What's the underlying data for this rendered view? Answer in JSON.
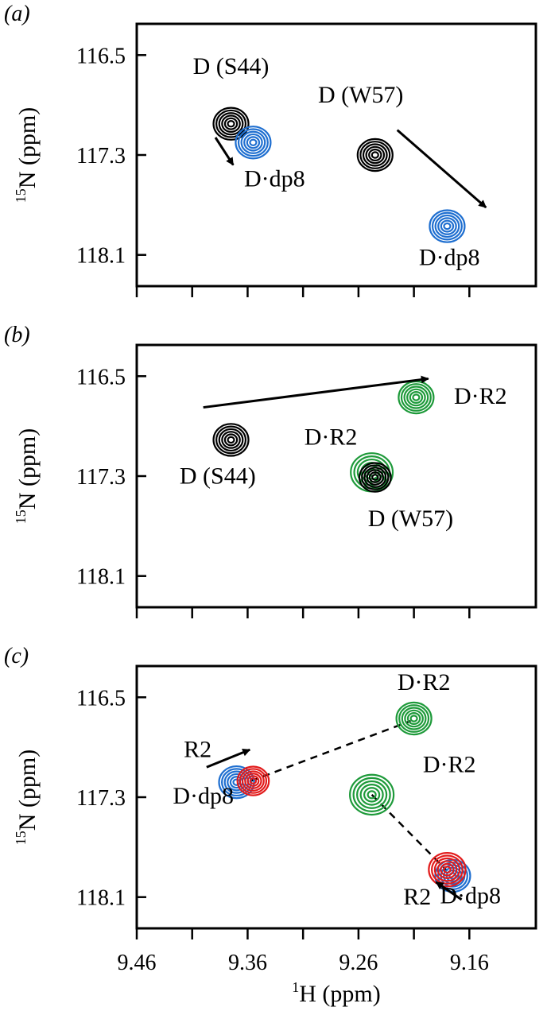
{
  "chart_data": [
    {
      "type": "contour",
      "panel_label": "(a)",
      "ylabel": "15N (ppm)",
      "ylabel_sup": "15",
      "ylabel_rest": "N (ppm)",
      "xlabel": "",
      "xticks": [
        "",
        "",
        "",
        "",
        "",
        "",
        ""
      ],
      "xlim": [
        9.46,
        9.1
      ],
      "ylim": [
        116.25,
        118.35
      ],
      "yticks": [
        "116.5",
        "117.3",
        "118.1"
      ],
      "peaks": [
        {
          "label": "D (S44)",
          "x": 9.375,
          "y": 117.05,
          "color": "#000000",
          "spread": 1.0
        },
        {
          "label": "D·dp8",
          "x": 9.355,
          "y": 117.2,
          "color": "#1f6fd0",
          "spread": 1.0
        },
        {
          "label": "D (W57)",
          "x": 9.245,
          "y": 117.3,
          "color": "#000000",
          "spread": 1.0
        },
        {
          "label": "D·dp8",
          "x": 9.18,
          "y": 117.87,
          "color": "#1f6fd0",
          "spread": 1.0
        }
      ],
      "arrows": [
        {
          "from": [
            9.389,
            117.16
          ],
          "to": [
            9.373,
            117.38
          ]
        },
        {
          "from": [
            9.225,
            117.1
          ],
          "to": [
            9.145,
            117.72
          ]
        }
      ],
      "dashed": [],
      "labels": [
        {
          "text": "D (S44)",
          "x": 9.375,
          "y": 116.65,
          "anchor": "middle"
        },
        {
          "text": "D·dp8",
          "x": 9.3357,
          "y": 117.55,
          "anchor": "middle"
        },
        {
          "text": "D (W57)",
          "x": 9.258,
          "y": 116.88,
          "anchor": "middle"
        },
        {
          "text": "D·dp8",
          "x": 9.178,
          "y": 118.18,
          "anchor": "middle"
        }
      ]
    },
    {
      "type": "contour",
      "panel_label": "(b)",
      "ylabel": "15N (ppm)",
      "ylabel_sup": "15",
      "ylabel_rest": "N (ppm)",
      "xlabel": "",
      "xticks": [
        "",
        "",
        "",
        "",
        "",
        "",
        ""
      ],
      "xlim": [
        9.46,
        9.1
      ],
      "ylim": [
        116.25,
        118.35
      ],
      "yticks": [
        "116.5",
        "117.3",
        "118.1"
      ],
      "peaks": [
        {
          "label": "D·R2",
          "x": 9.208,
          "y": 116.67,
          "color": "#1e9a3a",
          "spread": 1.0
        },
        {
          "label": "D (S44)",
          "x": 9.375,
          "y": 117.01,
          "color": "#000000",
          "spread": 1.0
        },
        {
          "label": "D·R2",
          "x": 9.248,
          "y": 117.27,
          "color": "#1e9a3a",
          "spread": 1.2
        },
        {
          "label": "D (W57)",
          "x": 9.245,
          "y": 117.31,
          "color": "#000000",
          "spread": 0.9
        }
      ],
      "arrows": [
        {
          "from": [
            9.4,
            116.75
          ],
          "to": [
            9.197,
            116.52
          ]
        }
      ],
      "dashed": [],
      "labels": [
        {
          "text": "D·R2",
          "x": 9.15,
          "y": 116.72,
          "anchor": "middle"
        },
        {
          "text": "D (S44)",
          "x": 9.387,
          "y": 117.36,
          "anchor": "middle"
        },
        {
          "text": "D·R2",
          "x": 9.285,
          "y": 117.05,
          "anchor": "middle"
        },
        {
          "text": "D (W57)",
          "x": 9.213,
          "y": 117.7,
          "anchor": "middle"
        }
      ]
    },
    {
      "type": "contour",
      "panel_label": "(c)",
      "ylabel": "15N (ppm)",
      "ylabel_sup": "15",
      "ylabel_rest": "N (ppm)",
      "xlabel": "1H (ppm)",
      "xlabel_sup": "1",
      "xlabel_rest": "H (ppm)",
      "xticks": [
        "9.46",
        "9.41",
        "9.36",
        "9.31",
        "9.26",
        "9.21",
        "9.16"
      ],
      "xtick_labels": [
        "9.46",
        "",
        "9.36",
        "",
        "9.26",
        "",
        "9.16"
      ],
      "xlim": [
        9.46,
        9.1
      ],
      "ylim": [
        116.25,
        118.35
      ],
      "yticks": [
        "116.5",
        "117.3",
        "118.1"
      ],
      "peaks": [
        {
          "label": "D·R2",
          "x": 9.21,
          "y": 116.67,
          "color": "#1e9a3a",
          "spread": 1.0
        },
        {
          "label": "D·R2",
          "x": 9.248,
          "y": 117.28,
          "color": "#1e9a3a",
          "spread": 1.25
        },
        {
          "label": "D·dp8",
          "x": 9.37,
          "y": 117.18,
          "color": "#1f6fd0",
          "spread": 1.0
        },
        {
          "label": "R2",
          "x": 9.355,
          "y": 117.17,
          "color": "#e21b1b",
          "spread": 0.9
        },
        {
          "label": "D·dp8",
          "x": 9.175,
          "y": 117.93,
          "color": "#1f6fd0",
          "spread": 1.0
        },
        {
          "label": "R2",
          "x": 9.18,
          "y": 117.88,
          "color": "#e21b1b",
          "spread": 1.05
        }
      ],
      "arrows": [
        {
          "from": [
            9.397,
            117.06
          ],
          "to": [
            9.358,
            116.92
          ]
        },
        {
          "from": [
            9.167,
            118.12
          ],
          "to": [
            9.19,
            117.98
          ]
        }
      ],
      "dashed": [
        {
          "from": [
            9.357,
            117.17
          ],
          "to": [
            9.213,
            116.69
          ]
        },
        {
          "from": [
            9.248,
            117.28
          ],
          "to": [
            9.18,
            117.89
          ]
        }
      ],
      "labels": [
        {
          "text": "D·R2",
          "x": 9.201,
          "y": 116.44,
          "anchor": "middle"
        },
        {
          "text": "R2",
          "x": 9.405,
          "y": 116.98,
          "anchor": "middle"
        },
        {
          "text": "D·R2",
          "x": 9.178,
          "y": 117.1,
          "anchor": "middle"
        },
        {
          "text": "D·dp8",
          "x": 9.4,
          "y": 117.35,
          "anchor": "middle"
        },
        {
          "text": "R2",
          "x": 9.207,
          "y": 118.16,
          "anchor": "middle"
        },
        {
          "text": "D·dp8",
          "x": 9.159,
          "y": 118.15,
          "anchor": "middle"
        }
      ]
    }
  ]
}
